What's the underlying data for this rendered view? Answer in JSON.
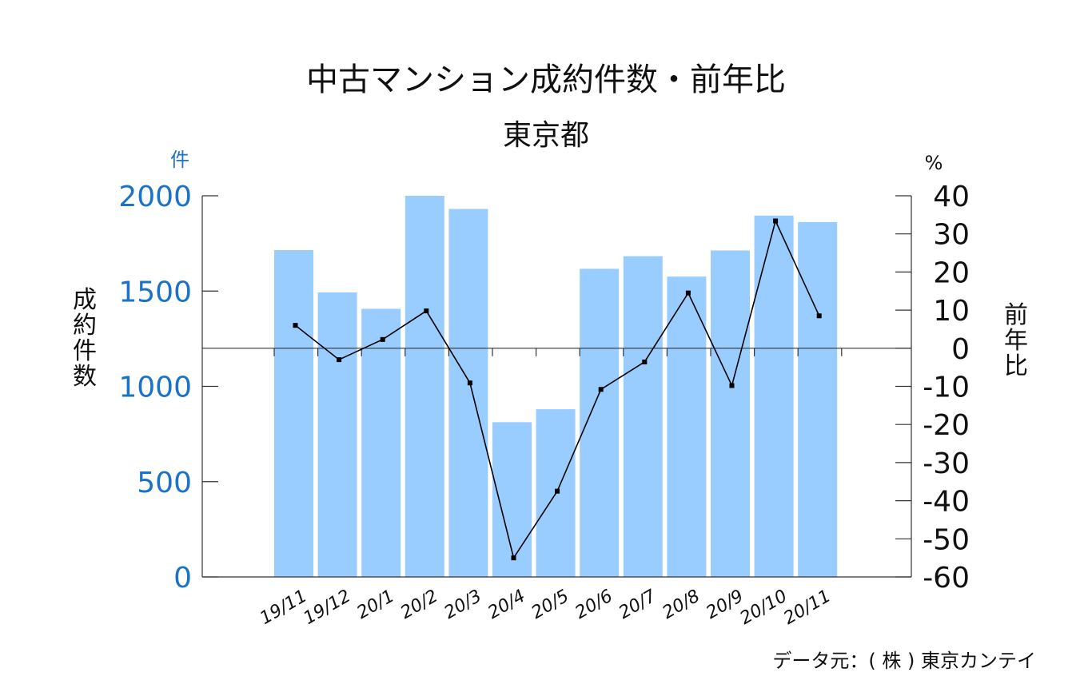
{
  "chart_data": {
    "type": "bar",
    "title": "中古マンション成約件数・前年比",
    "subtitle": "東京都",
    "categories": [
      "19/11",
      "19/12",
      "20/1",
      "20/2",
      "20/3",
      "20/4",
      "20/5",
      "20/6",
      "20/7",
      "20/8",
      "20/9",
      "20/10",
      "20/11"
    ],
    "series": [
      {
        "name": "成約件数",
        "type": "bar",
        "axis": "left",
        "color": "#99ccff",
        "values": [
          1715,
          1493,
          1407,
          2000,
          1931,
          812,
          880,
          1617,
          1683,
          1576,
          1713,
          1896,
          1862
        ]
      },
      {
        "name": "前年比",
        "type": "line",
        "axis": "right",
        "color": "#000000",
        "values": [
          6.0,
          -3.0,
          2.3,
          9.8,
          -9.1,
          -55.0,
          -37.5,
          -10.8,
          -3.6,
          14.5,
          -9.8,
          33.4,
          8.5
        ]
      }
    ],
    "left_axis": {
      "label": "成約件数",
      "unit": "件",
      "range": [
        0,
        2000
      ],
      "ticks": [
        0,
        500,
        1000,
        1500,
        2000
      ]
    },
    "right_axis": {
      "label": "前年比",
      "unit": "%",
      "range": [
        -60,
        40
      ],
      "ticks": [
        40,
        30,
        20,
        10,
        0,
        -10,
        -20,
        -30,
        -40,
        -50,
        -60
      ]
    },
    "source": "データ元：( 株 ) 東京カンテイ"
  }
}
